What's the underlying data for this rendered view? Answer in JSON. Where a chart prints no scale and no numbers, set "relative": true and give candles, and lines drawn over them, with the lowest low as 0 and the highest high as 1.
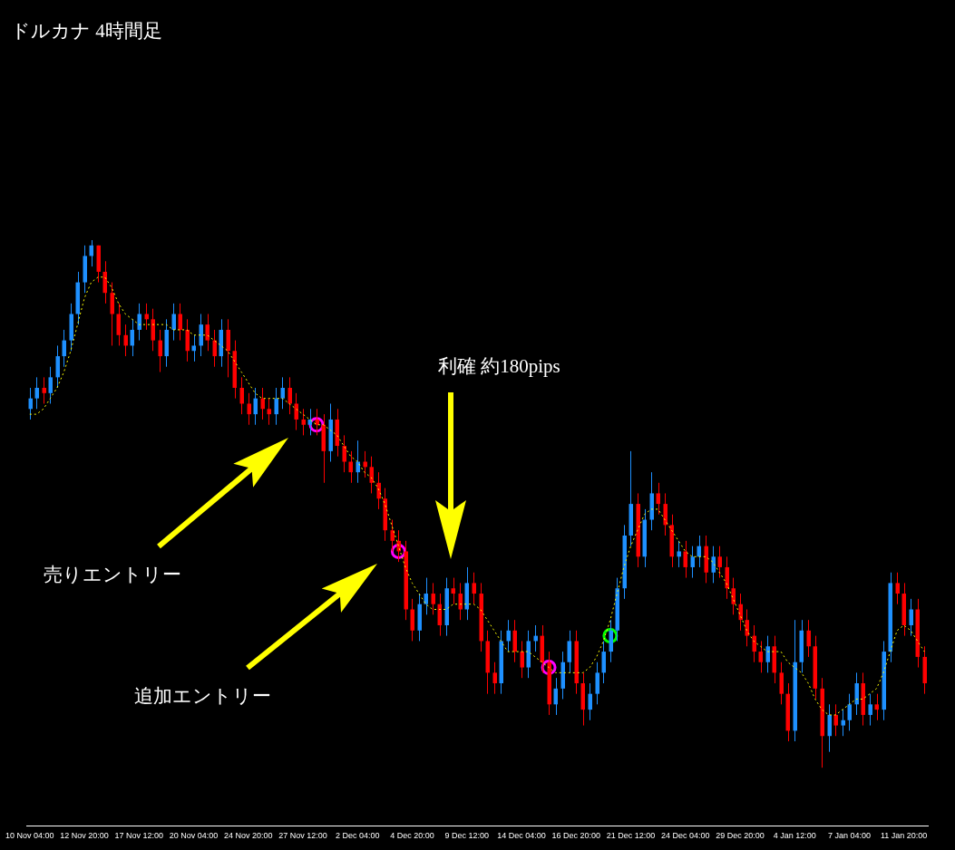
{
  "chart_data": {
    "type": "candlestick",
    "title": "ドルカナ 4時間足",
    "relative": true,
    "annotations": [
      "利確 約180pips",
      "売りエントリー",
      "追加エントリー"
    ],
    "categories": [
      "10 Nov 04:00",
      null,
      null,
      null,
      null,
      null,
      null,
      null,
      "12 Nov 20:00",
      null,
      null,
      null,
      null,
      null,
      null,
      null,
      "17 Nov 12:00",
      null,
      null,
      null,
      null,
      null,
      null,
      null,
      "20 Nov 04:00",
      null,
      null,
      null,
      null,
      null,
      null,
      null,
      "24 Nov 20:00",
      null,
      null,
      null,
      null,
      null,
      null,
      null,
      "27 Nov 12:00",
      null,
      null,
      null,
      null,
      null,
      null,
      null,
      "2 Dec 04:00",
      null,
      null,
      null,
      null,
      null,
      null,
      null,
      "4 Dec 20:00",
      null,
      null,
      null,
      null,
      null,
      null,
      null,
      "9 Dec 12:00",
      null,
      null,
      null,
      null,
      null,
      null,
      null,
      "14 Dec 04:00",
      null,
      null,
      null,
      null,
      null,
      null,
      null,
      "16 Dec 20:00",
      null,
      null,
      null,
      null,
      null,
      null,
      null,
      "21 Dec 12:00",
      null,
      null,
      null,
      null,
      null,
      null,
      null,
      "24 Dec 04:00",
      null,
      null,
      null,
      null,
      null,
      null,
      null,
      "29 Dec 20:00",
      null,
      null,
      null,
      null,
      null,
      null,
      null,
      "4 Jan 12:00",
      null,
      null,
      null,
      null,
      null,
      null,
      null,
      "7 Jan 04:00",
      null,
      null,
      null,
      null,
      null,
      null,
      null,
      "11 Jan 20:00",
      null,
      null,
      null
    ],
    "ohlc": [
      [
        0.68,
        0.72,
        0.66,
        0.7
      ],
      [
        0.7,
        0.74,
        0.68,
        0.72
      ],
      [
        0.72,
        0.74,
        0.69,
        0.71
      ],
      [
        0.71,
        0.76,
        0.69,
        0.74
      ],
      [
        0.74,
        0.8,
        0.72,
        0.78
      ],
      [
        0.78,
        0.83,
        0.76,
        0.81
      ],
      [
        0.81,
        0.88,
        0.79,
        0.86
      ],
      [
        0.86,
        0.94,
        0.84,
        0.92
      ],
      [
        0.92,
        0.99,
        0.9,
        0.97
      ],
      [
        0.97,
        1.0,
        0.95,
        0.99
      ],
      [
        0.99,
        0.99,
        0.92,
        0.94
      ],
      [
        0.94,
        0.96,
        0.88,
        0.9
      ],
      [
        0.9,
        0.92,
        0.8,
        0.86
      ],
      [
        0.86,
        0.88,
        0.8,
        0.82
      ],
      [
        0.82,
        0.84,
        0.78,
        0.8
      ],
      [
        0.8,
        0.85,
        0.78,
        0.83
      ],
      [
        0.83,
        0.88,
        0.81,
        0.86
      ],
      [
        0.86,
        0.88,
        0.83,
        0.85
      ],
      [
        0.85,
        0.87,
        0.79,
        0.81
      ],
      [
        0.81,
        0.83,
        0.75,
        0.78
      ],
      [
        0.78,
        0.85,
        0.76,
        0.83
      ],
      [
        0.83,
        0.88,
        0.81,
        0.86
      ],
      [
        0.86,
        0.88,
        0.81,
        0.83
      ],
      [
        0.83,
        0.85,
        0.77,
        0.79
      ],
      [
        0.79,
        0.82,
        0.77,
        0.8
      ],
      [
        0.8,
        0.86,
        0.78,
        0.84
      ],
      [
        0.84,
        0.86,
        0.79,
        0.81
      ],
      [
        0.81,
        0.83,
        0.76,
        0.78
      ],
      [
        0.78,
        0.85,
        0.76,
        0.83
      ],
      [
        0.83,
        0.85,
        0.74,
        0.79
      ],
      [
        0.79,
        0.81,
        0.7,
        0.72
      ],
      [
        0.72,
        0.74,
        0.67,
        0.69
      ],
      [
        0.69,
        0.71,
        0.65,
        0.67
      ],
      [
        0.67,
        0.72,
        0.65,
        0.7
      ],
      [
        0.7,
        0.72,
        0.66,
        0.68
      ],
      [
        0.68,
        0.7,
        0.65,
        0.67
      ],
      [
        0.67,
        0.72,
        0.65,
        0.7
      ],
      [
        0.7,
        0.74,
        0.68,
        0.72
      ],
      [
        0.72,
        0.74,
        0.67,
        0.69
      ],
      [
        0.69,
        0.71,
        0.64,
        0.66
      ],
      [
        0.66,
        0.68,
        0.63,
        0.65
      ],
      [
        0.65,
        0.68,
        0.63,
        0.66
      ],
      [
        0.66,
        0.68,
        0.63,
        0.65
      ],
      [
        0.65,
        0.67,
        0.54,
        0.6
      ],
      [
        0.6,
        0.69,
        0.58,
        0.66
      ],
      [
        0.66,
        0.68,
        0.59,
        0.61
      ],
      [
        0.61,
        0.63,
        0.56,
        0.58
      ],
      [
        0.58,
        0.6,
        0.54,
        0.56
      ],
      [
        0.56,
        0.62,
        0.54,
        0.58
      ],
      [
        0.58,
        0.6,
        0.55,
        0.57
      ],
      [
        0.57,
        0.59,
        0.52,
        0.54
      ],
      [
        0.54,
        0.56,
        0.49,
        0.51
      ],
      [
        0.51,
        0.53,
        0.43,
        0.45
      ],
      [
        0.45,
        0.47,
        0.41,
        0.43
      ],
      [
        0.43,
        0.45,
        0.39,
        0.41
      ],
      [
        0.41,
        0.43,
        0.28,
        0.3
      ],
      [
        0.3,
        0.32,
        0.24,
        0.26
      ],
      [
        0.26,
        0.33,
        0.24,
        0.31
      ],
      [
        0.31,
        0.36,
        0.29,
        0.33
      ],
      [
        0.33,
        0.35,
        0.29,
        0.31
      ],
      [
        0.31,
        0.33,
        0.25,
        0.27
      ],
      [
        0.27,
        0.36,
        0.25,
        0.34
      ],
      [
        0.34,
        0.36,
        0.31,
        0.33
      ],
      [
        0.33,
        0.35,
        0.28,
        0.3
      ],
      [
        0.3,
        0.38,
        0.28,
        0.35
      ],
      [
        0.35,
        0.37,
        0.31,
        0.33
      ],
      [
        0.33,
        0.35,
        0.22,
        0.24
      ],
      [
        0.24,
        0.26,
        0.14,
        0.18
      ],
      [
        0.18,
        0.2,
        0.14,
        0.16
      ],
      [
        0.16,
        0.26,
        0.14,
        0.24
      ],
      [
        0.24,
        0.28,
        0.22,
        0.26
      ],
      [
        0.26,
        0.28,
        0.2,
        0.22
      ],
      [
        0.22,
        0.24,
        0.17,
        0.19
      ],
      [
        0.19,
        0.26,
        0.17,
        0.24
      ],
      [
        0.24,
        0.27,
        0.22,
        0.25
      ],
      [
        0.25,
        0.27,
        0.18,
        0.2
      ],
      [
        0.2,
        0.22,
        0.1,
        0.12
      ],
      [
        0.12,
        0.17,
        0.1,
        0.15
      ],
      [
        0.15,
        0.22,
        0.13,
        0.2
      ],
      [
        0.2,
        0.26,
        0.18,
        0.24
      ],
      [
        0.24,
        0.26,
        0.14,
        0.16
      ],
      [
        0.16,
        0.18,
        0.08,
        0.11
      ],
      [
        0.11,
        0.16,
        0.09,
        0.14
      ],
      [
        0.14,
        0.2,
        0.12,
        0.18
      ],
      [
        0.18,
        0.24,
        0.16,
        0.22
      ],
      [
        0.22,
        0.28,
        0.2,
        0.26
      ],
      [
        0.26,
        0.36,
        0.24,
        0.34
      ],
      [
        0.34,
        0.46,
        0.32,
        0.44
      ],
      [
        0.44,
        0.6,
        0.42,
        0.5
      ],
      [
        0.5,
        0.52,
        0.38,
        0.4
      ],
      [
        0.4,
        0.49,
        0.38,
        0.47
      ],
      [
        0.47,
        0.56,
        0.45,
        0.52
      ],
      [
        0.52,
        0.54,
        0.48,
        0.5
      ],
      [
        0.5,
        0.52,
        0.44,
        0.46
      ],
      [
        0.46,
        0.48,
        0.38,
        0.4
      ],
      [
        0.4,
        0.43,
        0.38,
        0.41
      ],
      [
        0.41,
        0.43,
        0.36,
        0.38
      ],
      [
        0.38,
        0.42,
        0.36,
        0.4
      ],
      [
        0.4,
        0.44,
        0.38,
        0.42
      ],
      [
        0.42,
        0.44,
        0.35,
        0.37
      ],
      [
        0.37,
        0.42,
        0.35,
        0.4
      ],
      [
        0.4,
        0.42,
        0.36,
        0.38
      ],
      [
        0.38,
        0.4,
        0.32,
        0.34
      ],
      [
        0.34,
        0.36,
        0.29,
        0.31
      ],
      [
        0.31,
        0.33,
        0.26,
        0.28
      ],
      [
        0.28,
        0.3,
        0.23,
        0.25
      ],
      [
        0.25,
        0.27,
        0.2,
        0.22
      ],
      [
        0.22,
        0.24,
        0.18,
        0.2
      ],
      [
        0.2,
        0.25,
        0.18,
        0.23
      ],
      [
        0.23,
        0.25,
        0.16,
        0.18
      ],
      [
        0.18,
        0.2,
        0.12,
        0.14
      ],
      [
        0.14,
        0.16,
        0.05,
        0.07
      ],
      [
        0.07,
        0.28,
        0.05,
        0.2
      ],
      [
        0.2,
        0.28,
        0.18,
        0.26
      ],
      [
        0.26,
        0.28,
        0.21,
        0.23
      ],
      [
        0.23,
        0.25,
        0.13,
        0.15
      ],
      [
        0.15,
        0.17,
        0.0,
        0.06
      ],
      [
        0.06,
        0.12,
        0.03,
        0.1
      ],
      [
        0.1,
        0.12,
        0.06,
        0.08
      ],
      [
        0.08,
        0.11,
        0.06,
        0.09
      ],
      [
        0.09,
        0.14,
        0.07,
        0.12
      ],
      [
        0.12,
        0.18,
        0.1,
        0.16
      ],
      [
        0.16,
        0.18,
        0.08,
        0.1
      ],
      [
        0.1,
        0.14,
        0.08,
        0.12
      ],
      [
        0.12,
        0.14,
        0.09,
        0.11
      ],
      [
        0.11,
        0.24,
        0.09,
        0.22
      ],
      [
        0.22,
        0.37,
        0.2,
        0.35
      ],
      [
        0.35,
        0.37,
        0.31,
        0.33
      ],
      [
        0.33,
        0.35,
        0.25,
        0.27
      ],
      [
        0.27,
        0.32,
        0.25,
        0.3
      ],
      [
        0.3,
        0.32,
        0.19,
        0.21
      ],
      [
        0.21,
        0.23,
        0.14,
        0.16
      ]
    ],
    "colors": [
      "#1e90ff",
      "#1e90ff",
      "#ff0000",
      "#1e90ff",
      "#1e90ff",
      "#1e90ff",
      "#1e90ff",
      "#1e90ff",
      "#1e90ff",
      "#1e90ff",
      "#ff0000",
      "#ff0000",
      "#ff0000",
      "#ff0000",
      "#ff0000",
      "#1e90ff",
      "#1e90ff",
      "#ff0000",
      "#ff0000",
      "#ff0000",
      "#1e90ff",
      "#1e90ff",
      "#ff0000",
      "#ff0000",
      "#1e90ff",
      "#1e90ff",
      "#ff0000",
      "#ff0000",
      "#1e90ff",
      "#ff0000",
      "#ff0000",
      "#ff0000",
      "#ff0000",
      "#1e90ff",
      "#ff0000",
      "#ff0000",
      "#1e90ff",
      "#1e90ff",
      "#ff0000",
      "#ff0000",
      "#ff0000",
      "#1e90ff",
      "#ff0000",
      "#ff0000",
      "#1e90ff",
      "#ff0000",
      "#ff0000",
      "#ff0000",
      "#1e90ff",
      "#ff0000",
      "#ff0000",
      "#ff0000",
      "#ff0000",
      "#ff0000",
      "#ff0000",
      "#ff0000",
      "#ff0000",
      "#1e90ff",
      "#1e90ff",
      "#ff0000",
      "#ff0000",
      "#1e90ff",
      "#ff0000",
      "#ff0000",
      "#1e90ff",
      "#ff0000",
      "#ff0000",
      "#ff0000",
      "#ff0000",
      "#1e90ff",
      "#1e90ff",
      "#ff0000",
      "#ff0000",
      "#1e90ff",
      "#1e90ff",
      "#ff0000",
      "#ff0000",
      "#1e90ff",
      "#1e90ff",
      "#1e90ff",
      "#ff0000",
      "#ff0000",
      "#1e90ff",
      "#1e90ff",
      "#1e90ff",
      "#1e90ff",
      "#1e90ff",
      "#1e90ff",
      "#1e90ff",
      "#ff0000",
      "#1e90ff",
      "#1e90ff",
      "#ff0000",
      "#ff0000",
      "#ff0000",
      "#1e90ff",
      "#ff0000",
      "#1e90ff",
      "#1e90ff",
      "#ff0000",
      "#1e90ff",
      "#ff0000",
      "#ff0000",
      "#ff0000",
      "#ff0000",
      "#ff0000",
      "#ff0000",
      "#ff0000",
      "#1e90ff",
      "#ff0000",
      "#ff0000",
      "#ff0000",
      "#1e90ff",
      "#1e90ff",
      "#ff0000",
      "#ff0000",
      "#ff0000",
      "#1e90ff",
      "#ff0000",
      "#1e90ff",
      "#1e90ff",
      "#1e90ff",
      "#ff0000",
      "#1e90ff",
      "#ff0000",
      "#1e90ff",
      "#1e90ff",
      "#ff0000",
      "#ff0000",
      "#1e90ff",
      "#ff0000",
      "#ff0000"
    ],
    "series": [
      {
        "type": "line",
        "color": "#ffff00",
        "line_style": "dotted",
        "marker": "none",
        "values": [
          0.67,
          0.67,
          0.68,
          0.7,
          0.72,
          0.75,
          0.79,
          0.84,
          0.89,
          0.92,
          0.93,
          0.93,
          0.91,
          0.88,
          0.86,
          0.85,
          0.84,
          0.84,
          0.84,
          0.84,
          0.84,
          0.83,
          0.83,
          0.83,
          0.82,
          0.82,
          0.82,
          0.81,
          0.8,
          0.79,
          0.77,
          0.75,
          0.73,
          0.71,
          0.7,
          0.7,
          0.7,
          0.7,
          0.69,
          0.68,
          0.67,
          0.66,
          0.65,
          0.65,
          0.64,
          0.63,
          0.61,
          0.59,
          0.58,
          0.56,
          0.55,
          0.53,
          0.5,
          0.46,
          0.42,
          0.38,
          0.35,
          0.33,
          0.31,
          0.3,
          0.3,
          0.3,
          0.31,
          0.31,
          0.31,
          0.31,
          0.3,
          0.28,
          0.26,
          0.24,
          0.22,
          0.22,
          0.22,
          0.22,
          0.21,
          0.2,
          0.19,
          0.18,
          0.18,
          0.18,
          0.18,
          0.18,
          0.19,
          0.21,
          0.24,
          0.28,
          0.33,
          0.38,
          0.42,
          0.45,
          0.48,
          0.49,
          0.49,
          0.47,
          0.45,
          0.43,
          0.41,
          0.4,
          0.4,
          0.4,
          0.39,
          0.37,
          0.35,
          0.32,
          0.29,
          0.26,
          0.24,
          0.23,
          0.22,
          0.22,
          0.22,
          0.2,
          0.19,
          0.18,
          0.16,
          0.13,
          0.11,
          0.1,
          0.1,
          0.11,
          0.12,
          0.13,
          0.13,
          0.14,
          0.15,
          0.18,
          0.22,
          0.26,
          0.27,
          0.26,
          0.24,
          0.22
        ]
      },
      {
        "type": "scatter",
        "color": "#ff00ff",
        "marker": "circle",
        "values": [
          null,
          null,
          null,
          null,
          null,
          null,
          null,
          null,
          null,
          null,
          null,
          null,
          null,
          null,
          null,
          null,
          null,
          null,
          null,
          null,
          null,
          null,
          null,
          null,
          null,
          null,
          null,
          null,
          null,
          null,
          null,
          null,
          null,
          null,
          null,
          null,
          null,
          null,
          null,
          null,
          null,
          null,
          0.65,
          null,
          null,
          null,
          null,
          null,
          null,
          null,
          null,
          null,
          null,
          null,
          0.41,
          null,
          null,
          null,
          null,
          null,
          null,
          null,
          null,
          null,
          null,
          null,
          null,
          null,
          null,
          null,
          null,
          null,
          null,
          null,
          null,
          null,
          0.19,
          null,
          null,
          null,
          null,
          null,
          null,
          null,
          null,
          null,
          null,
          null,
          null,
          null,
          null,
          null,
          null,
          null,
          null,
          null,
          null,
          null,
          null,
          null,
          null,
          null,
          null,
          null,
          null,
          null,
          null,
          null,
          null,
          null,
          null,
          null,
          null,
          null,
          null,
          null,
          null,
          null,
          null,
          null,
          null,
          null,
          null,
          null,
          null,
          null,
          null,
          null,
          null,
          null,
          null,
          null
        ]
      },
      {
        "type": "scatter",
        "color": "#00ff00",
        "marker": "circle",
        "values": [
          null,
          null,
          null,
          null,
          null,
          null,
          null,
          null,
          null,
          null,
          null,
          null,
          null,
          null,
          null,
          null,
          null,
          null,
          null,
          null,
          null,
          null,
          null,
          null,
          null,
          null,
          null,
          null,
          null,
          null,
          null,
          null,
          null,
          null,
          null,
          null,
          null,
          null,
          null,
          null,
          null,
          null,
          null,
          null,
          null,
          null,
          null,
          null,
          null,
          null,
          null,
          null,
          null,
          null,
          null,
          null,
          null,
          null,
          null,
          null,
          null,
          null,
          null,
          null,
          null,
          null,
          null,
          null,
          null,
          null,
          null,
          null,
          null,
          null,
          null,
          null,
          null,
          null,
          null,
          null,
          null,
          null,
          null,
          null,
          null,
          0.25,
          null,
          null,
          null,
          null,
          null,
          null,
          null,
          null,
          null,
          null,
          null,
          null,
          null,
          null,
          null,
          null,
          null,
          null,
          null,
          null,
          null,
          null,
          null,
          null,
          null,
          null,
          null,
          null,
          null,
          null,
          null,
          null,
          null,
          null,
          null,
          null,
          null,
          null,
          null,
          null,
          null,
          null,
          null,
          null,
          null,
          null
        ]
      }
    ]
  }
}
